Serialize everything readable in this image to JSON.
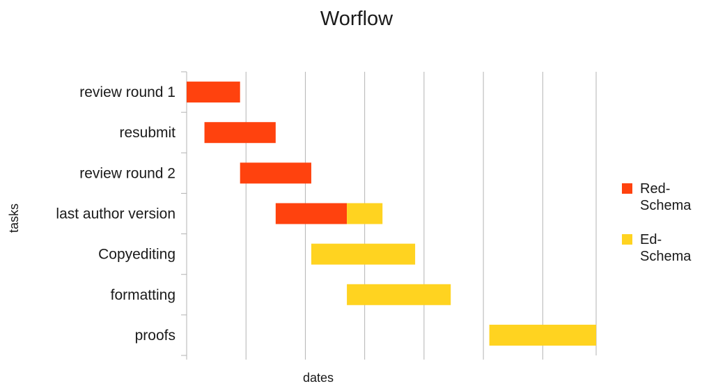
{
  "chart_data": {
    "type": "bar",
    "orientation": "horizontal",
    "stacked": true,
    "title": "Worflow",
    "xlabel": "dates",
    "ylabel": "tasks",
    "categories": [
      "review round 1",
      "resubmit",
      "review round 2",
      "last author version",
      "Copyediting",
      "formatting",
      "proofs"
    ],
    "offsets": [
      0,
      0.3,
      0.9,
      1.5,
      2.1,
      2.7,
      5.1
    ],
    "series": [
      {
        "name": "Red-Schema",
        "legend_lines": [
          "Red-",
          "Schema"
        ],
        "color": "#ff420e",
        "values": [
          0.9,
          1.2,
          1.2,
          1.2,
          0,
          0,
          0
        ]
      },
      {
        "name": "Ed-Schema",
        "legend_lines": [
          "Ed-",
          "Schema"
        ],
        "color": "#ffd320",
        "values": [
          0,
          0,
          0,
          0.6,
          1.75,
          1.75,
          1.8
        ]
      }
    ],
    "xlim": [
      0,
      6.9
    ],
    "x_grid_step": 1,
    "grid": true,
    "legend_position": "right"
  }
}
